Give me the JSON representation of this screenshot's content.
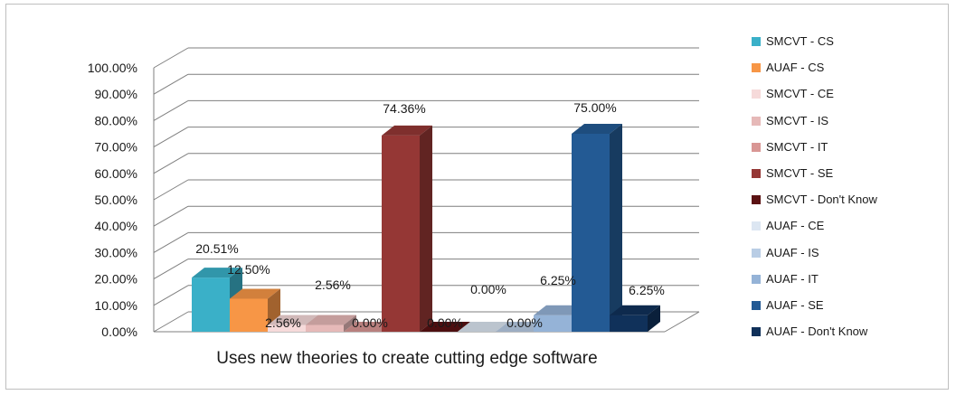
{
  "chart_data": {
    "type": "bar",
    "title": "",
    "xlabel": "Uses new theories to create cutting edge software",
    "ylabel": "",
    "ylim": [
      0,
      100
    ],
    "y_ticks": [
      "0.00%",
      "10.00%",
      "20.00%",
      "30.00%",
      "40.00%",
      "50.00%",
      "60.00%",
      "70.00%",
      "80.00%",
      "90.00%",
      "100.00%"
    ],
    "grid": true,
    "legend_position": "right",
    "series": [
      {
        "name": "SMCVT - CS",
        "value": 20.51,
        "label": "20.51%",
        "color": "#3ab0c8"
      },
      {
        "name": "AUAF - CS",
        "value": 12.5,
        "label": "12.50%",
        "color": "#f79646"
      },
      {
        "name": "SMCVT - CE",
        "value": 2.56,
        "label": "2.56%",
        "color": "#f6dada"
      },
      {
        "name": "SMCVT - IS",
        "value": 2.56,
        "label": "2.56%",
        "color": "#e6b9b8"
      },
      {
        "name": "SMCVT - IT",
        "value": 0.0,
        "label": "0.00%",
        "color": "#d99694"
      },
      {
        "name": "SMCVT - SE",
        "value": 74.36,
        "label": "74.36%",
        "color": "#953735"
      },
      {
        "name": "SMCVT - Don't Know",
        "value": 0.0,
        "label": "0.00%",
        "color": "#5b1213"
      },
      {
        "name": "AUAF - CE",
        "value": 0.0,
        "label": "0.00%",
        "color": "#dce6f2"
      },
      {
        "name": "AUAF - IS",
        "value": 0.0,
        "label": "0.00%",
        "color": "#b9cde5"
      },
      {
        "name": "AUAF - IT",
        "value": 6.25,
        "label": "6.25%",
        "color": "#95b3d7"
      },
      {
        "name": "AUAF - SE",
        "value": 75.0,
        "label": "75.00%",
        "color": "#235a94"
      },
      {
        "name": "AUAF - Don't Know",
        "value": 6.25,
        "label": "6.25%",
        "color": "#10315a"
      }
    ]
  }
}
